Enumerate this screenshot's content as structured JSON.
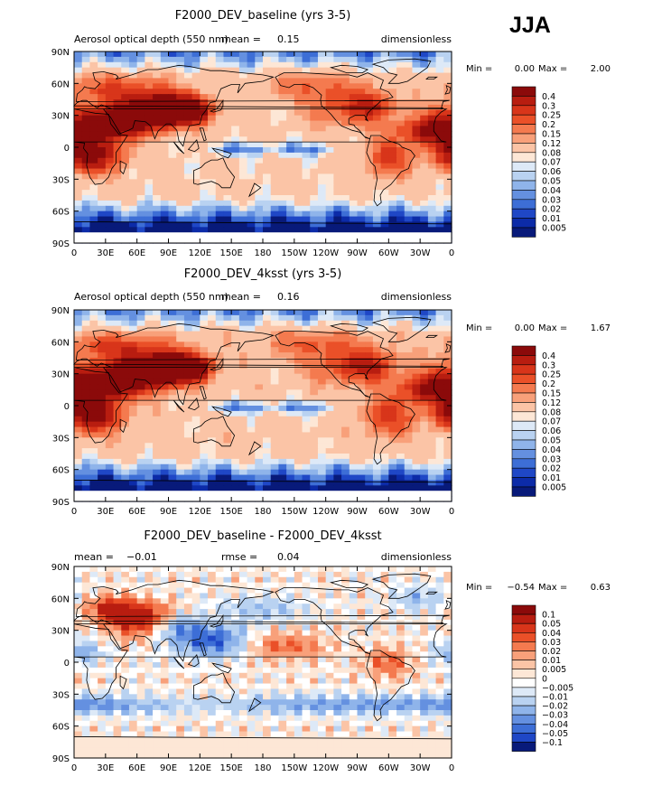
{
  "season": "JJA",
  "chart_data": [
    {
      "type": "heatmap",
      "title": "F2000_DEV_baseline (yrs 3-5)",
      "left_label": "Aerosol optical depth (550 nm)",
      "stat1_label": "mean =",
      "stat1_value": "0.15",
      "stat2_label": "",
      "stat2_value": "",
      "units": "dimensionless",
      "min_label": "Min =",
      "min_value": "0.00",
      "max_label": "Max =",
      "max_value": "2.00",
      "palette": "aod",
      "colorbar_levels": [
        "0.4",
        "0.3",
        "0.25",
        "0.2",
        "0.15",
        "0.12",
        "0.08",
        "0.07",
        "0.06",
        "0.05",
        "0.04",
        "0.03",
        "0.02",
        "0.01",
        "0.005"
      ],
      "colorbar_colors": [
        "#8b0a0a",
        "#b81d10",
        "#d8351a",
        "#ea5028",
        "#f47a4f",
        "#f8a07a",
        "#fbc4a6",
        "#fde7d6",
        "#dde9f7",
        "#b9d2f1",
        "#8fb4ea",
        "#6490e0",
        "#3d6ed6",
        "#1f47c6",
        "#0c2ba8",
        "#081a7a"
      ],
      "x_ticks": [
        "0",
        "30E",
        "60E",
        "90E",
        "120E",
        "150E",
        "180",
        "150W",
        "120W",
        "90W",
        "60W",
        "30W",
        "0"
      ],
      "y_ticks": [
        "90N",
        "60N",
        "30N",
        "0",
        "30S",
        "60S",
        "90S"
      ]
    },
    {
      "type": "heatmap",
      "title": "F2000_DEV_4ksst (yrs 3-5)",
      "left_label": "Aerosol optical depth (550 nm)",
      "stat1_label": "mean =",
      "stat1_value": "0.16",
      "stat2_label": "",
      "stat2_value": "",
      "units": "dimensionless",
      "min_label": "Min =",
      "min_value": "0.00",
      "max_label": "Max =",
      "max_value": "1.67",
      "palette": "aod",
      "colorbar_levels": [
        "0.4",
        "0.3",
        "0.25",
        "0.2",
        "0.15",
        "0.12",
        "0.08",
        "0.07",
        "0.06",
        "0.05",
        "0.04",
        "0.03",
        "0.02",
        "0.01",
        "0.005"
      ],
      "colorbar_colors": [
        "#8b0a0a",
        "#b81d10",
        "#d8351a",
        "#ea5028",
        "#f47a4f",
        "#f8a07a",
        "#fbc4a6",
        "#fde7d6",
        "#dde9f7",
        "#b9d2f1",
        "#8fb4ea",
        "#6490e0",
        "#3d6ed6",
        "#1f47c6",
        "#0c2ba8",
        "#081a7a"
      ],
      "x_ticks": [
        "0",
        "30E",
        "60E",
        "90E",
        "120E",
        "150E",
        "180",
        "150W",
        "120W",
        "90W",
        "60W",
        "30W",
        "0"
      ],
      "y_ticks": [
        "90N",
        "60N",
        "30N",
        "0",
        "30S",
        "60S",
        "90S"
      ]
    },
    {
      "type": "heatmap",
      "title": "F2000_DEV_baseline - F2000_DEV_4ksst",
      "left_label": "",
      "stat1_label": "mean =",
      "stat1_value": "−0.01",
      "stat2_label": "rmse =",
      "stat2_value": "0.04",
      "units": "dimensionless",
      "min_label": "Min =",
      "min_value": "−0.54",
      "max_label": "Max =",
      "max_value": "0.63",
      "palette": "diff",
      "colorbar_levels": [
        "0.1",
        "0.05",
        "0.04",
        "0.03",
        "0.02",
        "0.01",
        "0.005",
        "0",
        "−0.005",
        "−0.01",
        "−0.02",
        "−0.03",
        "−0.04",
        "−0.05",
        "−0.1"
      ],
      "colorbar_colors": [
        "#8b0a0a",
        "#b81d10",
        "#d8351a",
        "#ea5028",
        "#f47a4f",
        "#f8a07a",
        "#fbc4a6",
        "#fde7d6",
        "#ffffff",
        "#dde9f7",
        "#b9d2f1",
        "#8fb4ea",
        "#6490e0",
        "#3d6ed6",
        "#1f47c6",
        "#081a7a"
      ],
      "x_ticks": [
        "0",
        "30E",
        "60E",
        "90E",
        "120E",
        "150E",
        "180",
        "150W",
        "120W",
        "90W",
        "60W",
        "30W",
        "0"
      ],
      "y_ticks": [
        "90N",
        "60N",
        "30N",
        "0",
        "30S",
        "60S",
        "90S"
      ]
    }
  ]
}
